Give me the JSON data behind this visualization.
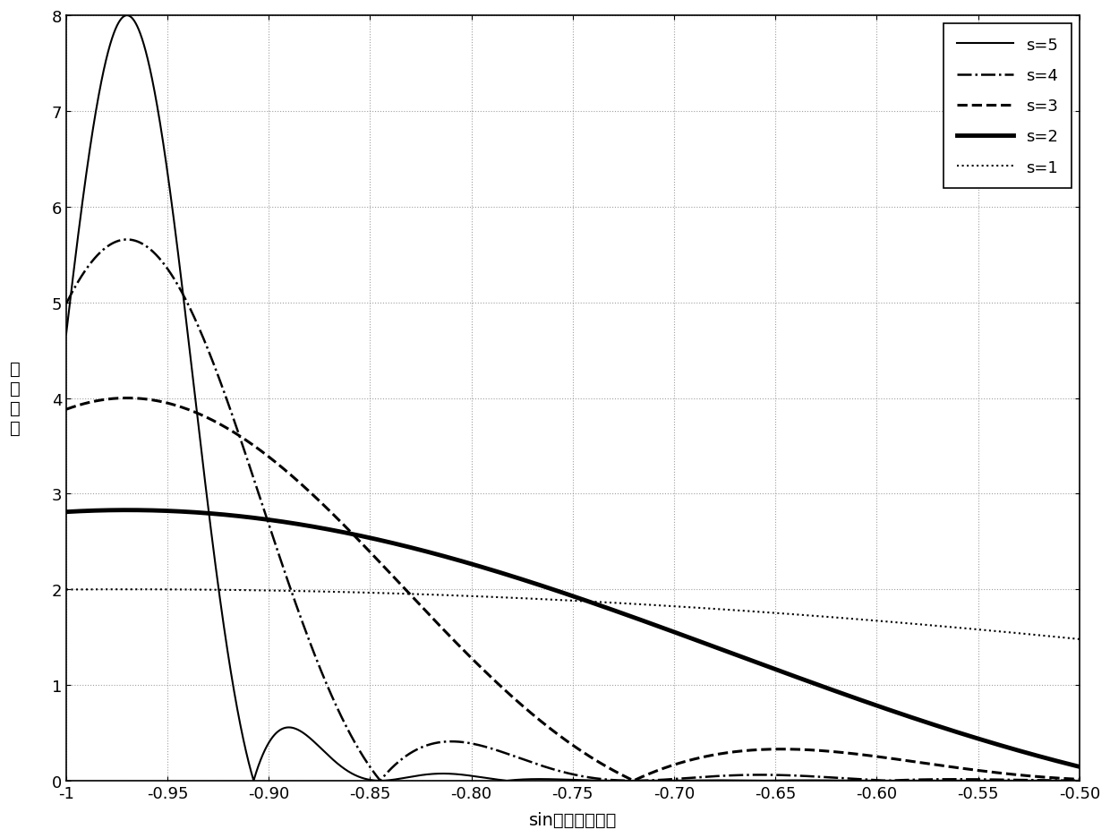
{
  "xlim": [
    -1.0,
    -0.5
  ],
  "ylim": [
    0,
    8
  ],
  "xticks": [
    -1.0,
    -0.95,
    -0.9,
    -0.85,
    -0.8,
    -0.75,
    -0.7,
    -0.65,
    -0.6,
    -0.55,
    -0.5
  ],
  "yticks": [
    0,
    1,
    2,
    3,
    4,
    5,
    6,
    7,
    8
  ],
  "xlabel": "sin（物理角度）",
  "ylabel": "波\n束\n增\n益",
  "legend_labels": [
    "s=5",
    "s=4",
    "s=3",
    "s=2",
    "s=1"
  ],
  "line_styles": [
    "-",
    "-.",
    "--",
    "-",
    ":"
  ],
  "line_widths": [
    1.5,
    1.8,
    2.2,
    3.5,
    1.5
  ],
  "s_values": [
    5,
    4,
    3,
    2,
    1
  ],
  "target_sin": -0.97,
  "d": 0.5,
  "background_color": "#ffffff",
  "grid_color": "#888888",
  "axis_fontsize": 14,
  "tick_fontsize": 13,
  "legend_fontsize": 13
}
